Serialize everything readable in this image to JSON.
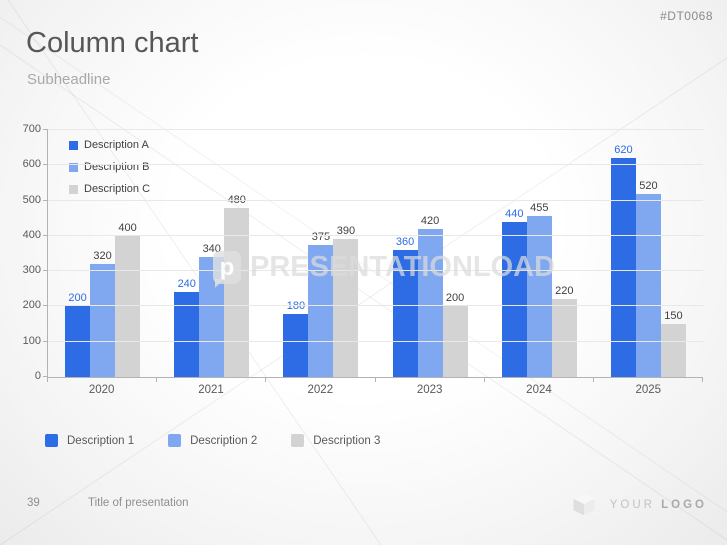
{
  "meta": {
    "code": "#DT0068"
  },
  "header": {
    "title": "Column chart",
    "subtitle": "Subheadline"
  },
  "watermark": {
    "logo_letter": "p",
    "text": "PRESENTATIONLOAD"
  },
  "chart_data": {
    "type": "bar",
    "title": "",
    "categories": [
      "2020",
      "2021",
      "2022",
      "2023",
      "2024",
      "2025"
    ],
    "series": [
      {
        "name": "Description A",
        "color": "#2D6CE5",
        "label_color": "#2D6CE5",
        "values": [
          200,
          240,
          180,
          360,
          440,
          620
        ]
      },
      {
        "name": "Description B",
        "color": "#80A8F1",
        "label_color": "#3F3F3F",
        "values": [
          320,
          340,
          375,
          420,
          455,
          520
        ]
      },
      {
        "name": "Description C",
        "color": "#D3D3D3",
        "label_color": "#3F3F3F",
        "values": [
          400,
          480,
          390,
          200,
          220,
          150
        ]
      }
    ],
    "xlabel": "",
    "ylabel": "",
    "ylim": [
      0,
      700
    ],
    "ytick_step": 100,
    "grid": true,
    "legend_position": "top-left-inside",
    "data_labels": true
  },
  "bottom_legend": [
    {
      "label": "Description 1",
      "color": "#2D6CE5"
    },
    {
      "label": "Description 2",
      "color": "#80A8F1"
    },
    {
      "label": "Description 3",
      "color": "#D3D3D3"
    }
  ],
  "footer": {
    "page_number": "39",
    "title": "Title of presentation",
    "logo_text_light": "YOUR ",
    "logo_text_bold": "LOGO"
  },
  "colors": {
    "axis": "#b3b3b3",
    "gridline": "#e8e8e8",
    "watermark_line": "rgba(130,130,130,0.13)"
  }
}
